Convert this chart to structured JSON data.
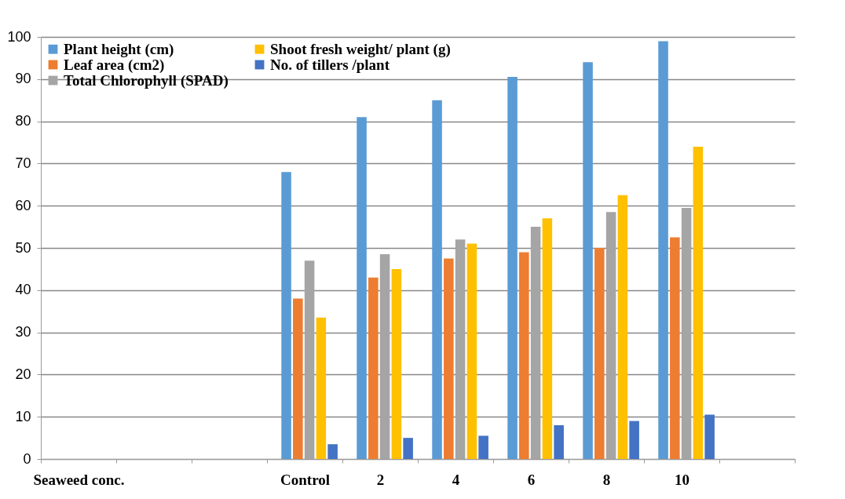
{
  "chart_data": {
    "type": "bar",
    "categories": [
      "Seaweed   conc.",
      null,
      null,
      "Control",
      "2",
      "4",
      "6",
      "8",
      "10",
      null
    ],
    "series": [
      {
        "name": "Plant height (cm)",
        "color": "#5b9bd5",
        "values": [
          null,
          null,
          null,
          68,
          81,
          85,
          90.5,
          94,
          99,
          null
        ]
      },
      {
        "name": "Leaf area (cm2)",
        "color": "#ed7d31",
        "values": [
          null,
          null,
          null,
          38,
          43,
          47.5,
          49,
          50,
          52.5,
          null
        ]
      },
      {
        "name": "Total Chlorophyll (SPAD)",
        "color": "#a5a5a5",
        "values": [
          null,
          null,
          null,
          47,
          48.5,
          52,
          55,
          58.5,
          59.5,
          null
        ]
      },
      {
        "name": "Shoot fresh weight/ plant (g)",
        "color": "#ffc000",
        "values": [
          null,
          null,
          null,
          33.5,
          45,
          51,
          57,
          62.5,
          74,
          null
        ]
      },
      {
        "name": "No. of tillers /plant",
        "color": "#4472c4",
        "values": [
          null,
          null,
          null,
          3.5,
          5,
          5.5,
          8,
          9,
          10.5,
          null
        ]
      }
    ],
    "ylim": [
      0,
      100
    ],
    "yticks": [
      0,
      10,
      20,
      30,
      40,
      50,
      60,
      70,
      80,
      90,
      100
    ],
    "grid": "y",
    "legend": "top left"
  }
}
